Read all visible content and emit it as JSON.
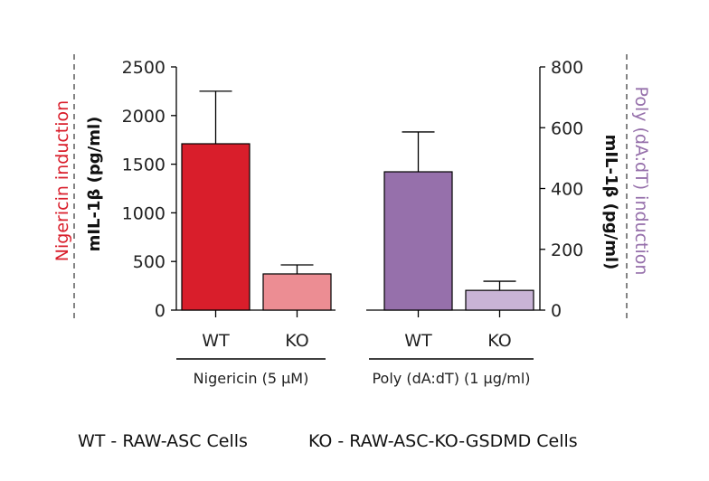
{
  "chart_data": [
    {
      "type": "bar",
      "group_label": "Nigericin (5 µM)",
      "categories": [
        "WT",
        "KO"
      ],
      "values": [
        1710,
        372
      ],
      "error_upper": [
        2250,
        465
      ],
      "colors": [
        "#d91e2b",
        "#ec8d93"
      ],
      "ylabel": "mIL-1β (pg/ml)",
      "side_label": "Nigericin induction",
      "side_label_color": "#d91e2b",
      "ylim": [
        0,
        2500
      ],
      "yticks": [
        0,
        500,
        1000,
        1500,
        2000,
        2500
      ],
      "axis": "left"
    },
    {
      "type": "bar",
      "group_label": "Poly (dA:dT) (1 µg/ml)",
      "categories": [
        "WT",
        "KO"
      ],
      "values": [
        455,
        65
      ],
      "error_upper": [
        586,
        95
      ],
      "colors": [
        "#9670ab",
        "#c9b4d6"
      ],
      "ylabel": "mIL-1β (pg/ml)",
      "side_label": "Poly (dA:dT) induction",
      "side_label_color": "#9670ab",
      "ylim": [
        0,
        800
      ],
      "yticks": [
        0,
        200,
        400,
        600,
        800
      ],
      "axis": "right"
    }
  ],
  "footer": {
    "wt_note": "WT - RAW-ASC Cells",
    "ko_note": "KO - RAW-ASC-KO-GSDMD Cells"
  }
}
